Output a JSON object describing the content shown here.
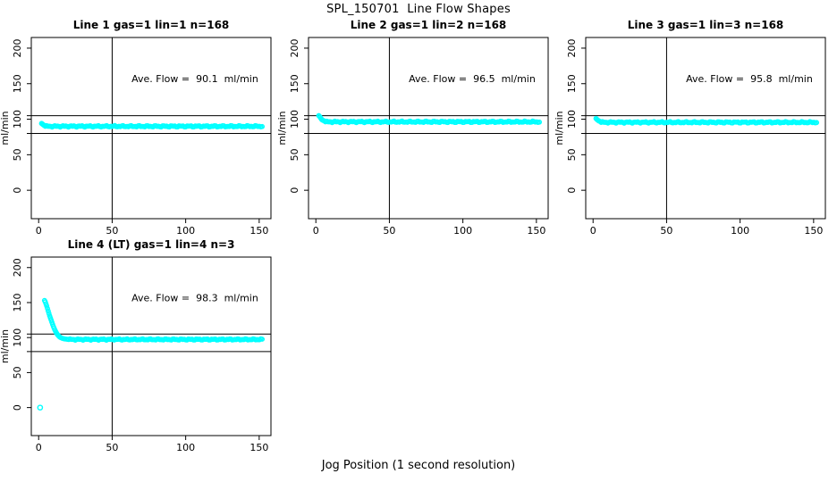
{
  "figure": {
    "main_title": "SPL_150701  Line Flow Shapes",
    "x_axis_label": "Jog Position (1 second resolution)",
    "y_axis_label": "ml/min",
    "point_color": "#00ffff",
    "axis_color": "#000000",
    "background": "#ffffff"
  },
  "chart_data": [
    {
      "type": "scatter",
      "title": "Line 1 gas=1 lin=1 n=168",
      "annotation": "Ave. Flow =  90.1  ml/min",
      "ave_flow": 90.1,
      "n": 168,
      "xlabel": "Jog Position (1 second resolution)",
      "ylabel": "ml/min",
      "xticks": [
        0,
        50,
        100,
        150
      ],
      "yticks": [
        0,
        50,
        100,
        150,
        200
      ],
      "xlim": [
        -5,
        158
      ],
      "ylim": [
        -40,
        215
      ],
      "hlines": [
        105,
        80
      ],
      "vline": 50,
      "zero_points": [],
      "transient": [
        [
          2,
          94
        ],
        [
          2.5,
          93.2
        ],
        [
          3,
          92.4
        ],
        [
          3.5,
          91.6
        ],
        [
          4,
          91
        ]
      ],
      "plateau": {
        "x_start": 4.5,
        "x_end": 152,
        "value": 90.0,
        "n": 160,
        "jitter": 1.1
      }
    },
    {
      "type": "scatter",
      "title": "Line 2 gas=1 lin=2 n=168",
      "annotation": "Ave. Flow =  96.5  ml/min",
      "ave_flow": 96.5,
      "n": 168,
      "xlabel": "Jog Position (1 second resolution)",
      "ylabel": "ml/min",
      "xticks": [
        0,
        50,
        100,
        150
      ],
      "yticks": [
        0,
        50,
        100,
        150,
        200
      ],
      "xlim": [
        -5,
        158
      ],
      "ylim": [
        -40,
        215
      ],
      "hlines": [
        105,
        80
      ],
      "vline": 50,
      "zero_points": [],
      "transient": [
        [
          2,
          105
        ],
        [
          2.5,
          104
        ],
        [
          3,
          102.5
        ],
        [
          3.5,
          101
        ],
        [
          4,
          99.5
        ],
        [
          4.5,
          98.8
        ],
        [
          5,
          98.2
        ],
        [
          6,
          97.3
        ]
      ],
      "plateau": {
        "x_start": 6.5,
        "x_end": 152,
        "value": 96.3,
        "n": 160,
        "jitter": 1.1
      }
    },
    {
      "type": "scatter",
      "title": "Line 3 gas=1 lin=3 n=168",
      "annotation": "Ave. Flow =  95.8  ml/min",
      "ave_flow": 95.8,
      "n": 168,
      "xlabel": "Jog Position (1 second resolution)",
      "ylabel": "ml/min",
      "xticks": [
        0,
        50,
        100,
        150
      ],
      "yticks": [
        0,
        50,
        100,
        150,
        200
      ],
      "xlim": [
        -5,
        158
      ],
      "ylim": [
        -40,
        215
      ],
      "hlines": [
        105,
        80
      ],
      "vline": 50,
      "zero_points": [],
      "transient": [
        [
          2,
          101
        ],
        [
          2.5,
          100
        ],
        [
          3,
          99
        ],
        [
          3.5,
          98.2
        ],
        [
          4,
          97.5
        ],
        [
          5,
          96.5
        ]
      ],
      "plateau": {
        "x_start": 5.5,
        "x_end": 152,
        "value": 95.6,
        "n": 160,
        "jitter": 1.1
      }
    },
    {
      "type": "scatter",
      "title": "Line 4 (LT) gas=1 lin=4 n=3",
      "annotation": "Ave. Flow =  98.3  ml/min",
      "ave_flow": 98.3,
      "n": 3,
      "xlabel": "Jog Position (1 second resolution)",
      "ylabel": "ml/min",
      "xticks": [
        0,
        50,
        100,
        150
      ],
      "yticks": [
        0,
        50,
        100,
        150,
        200
      ],
      "xlim": [
        -5,
        158
      ],
      "ylim": [
        -40,
        215
      ],
      "hlines": [
        105,
        80
      ],
      "vline": 50,
      "zero_points": [
        [
          1,
          0
        ]
      ],
      "transient": [
        [
          4,
          153
        ],
        [
          4.5,
          151
        ],
        [
          5,
          148
        ],
        [
          5.5,
          145
        ],
        [
          6,
          141.5
        ],
        [
          6.5,
          138
        ],
        [
          7,
          134.5
        ],
        [
          7.5,
          131
        ],
        [
          8,
          128
        ],
        [
          8.5,
          125
        ],
        [
          9,
          122
        ],
        [
          9.5,
          119
        ],
        [
          10,
          116
        ],
        [
          10.5,
          113.5
        ],
        [
          11,
          111
        ],
        [
          11.5,
          109
        ],
        [
          12,
          107
        ],
        [
          12.5,
          105.3
        ],
        [
          13,
          103.8
        ],
        [
          13.5,
          102.5
        ],
        [
          14,
          101.5
        ],
        [
          14.5,
          100.7
        ],
        [
          15,
          100
        ],
        [
          16,
          99
        ],
        [
          17,
          98.4
        ],
        [
          18,
          98
        ],
        [
          19,
          97.7
        ],
        [
          20,
          97.5
        ]
      ],
      "plateau": {
        "x_start": 20.5,
        "x_end": 152,
        "value": 97.3,
        "n": 150,
        "jitter": 1.0
      }
    }
  ]
}
